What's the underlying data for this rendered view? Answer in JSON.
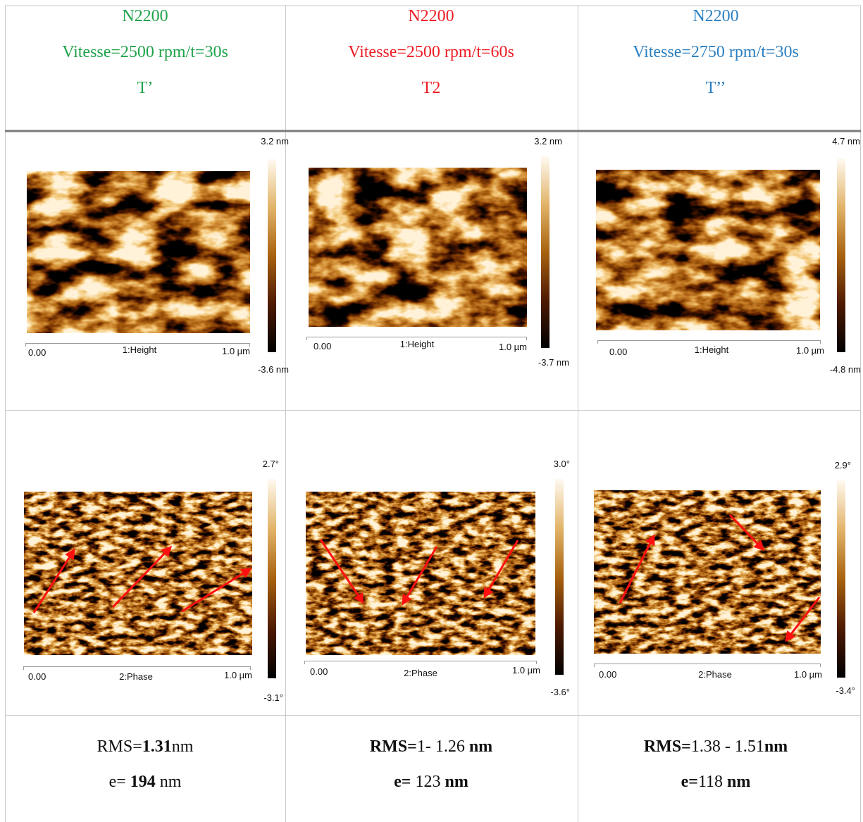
{
  "table": {
    "columns": [
      {
        "title": "N2200",
        "speed": "Vitesse=2500 rpm/t=30s",
        "label": "T’",
        "color": "#1fa34a"
      },
      {
        "title": "N2200",
        "speed": "Vitesse=2500 rpm/t=60s",
        "label": "T2",
        "color": "#ee1c24"
      },
      {
        "title": "N2200",
        "speed": "Vitesse=2750 rpm/t=30s",
        "label": "T’’",
        "color": "#2a7fc1"
      }
    ],
    "height_images": [
      {
        "max": "3.2 nm",
        "min": "-3.6 nm",
        "x_start": "0.00",
        "channel": "1:Height",
        "x_end": "1.0 µm"
      },
      {
        "max": "3.2 nm",
        "min": "-3.7 nm",
        "x_start": "0.00",
        "channel": "1:Height",
        "x_end": "1.0 µm"
      },
      {
        "max": "4.7 nm",
        "min": "-4.8 nm",
        "x_start": "0.00",
        "channel": "1:Height",
        "x_end": "1.0 µm"
      }
    ],
    "phase_images": [
      {
        "max": "2.7°",
        "min": "-3.1°",
        "x_start": "0.00",
        "channel": "2:Phase",
        "x_end": "1.0 µm"
      },
      {
        "max": "3.0°",
        "min": "-3.6°",
        "x_start": "0.00",
        "channel": "2:Phase",
        "x_end": "1.0 µm"
      },
      {
        "max": "2.9°",
        "min": "-3.4°",
        "x_start": "0.00",
        "channel": "2:Phase",
        "x_end": "1.0 µm"
      }
    ],
    "results": [
      {
        "lines": [
          [
            {
              "text": "RMS=",
              "bold": false
            },
            {
              "text": "1.31",
              "bold": true
            },
            {
              "text": "nm",
              "bold": false
            }
          ],
          [
            {
              "text": "e= ",
              "bold": false
            },
            {
              "text": "194",
              "bold": true
            },
            {
              "text": " nm",
              "bold": false
            }
          ]
        ]
      },
      {
        "lines": [
          [
            {
              "text": "RMS=",
              "bold": true
            },
            {
              "text": "1- 1.26 ",
              "bold": false
            },
            {
              "text": "nm",
              "bold": true
            }
          ],
          [
            {
              "text": "e= ",
              "bold": true
            },
            {
              "text": "123 ",
              "bold": false
            },
            {
              "text": "nm",
              "bold": true
            }
          ]
        ]
      },
      {
        "lines": [
          [
            {
              "text": "RMS=",
              "bold": true
            },
            {
              "text": "1.38 - 1.51",
              "bold": false
            },
            {
              "text": "nm",
              "bold": true
            }
          ],
          [
            {
              "text": "e=",
              "bold": true
            },
            {
              "text": "118 ",
              "bold": false
            },
            {
              "text": "nm",
              "bold": true
            }
          ]
        ]
      }
    ]
  }
}
